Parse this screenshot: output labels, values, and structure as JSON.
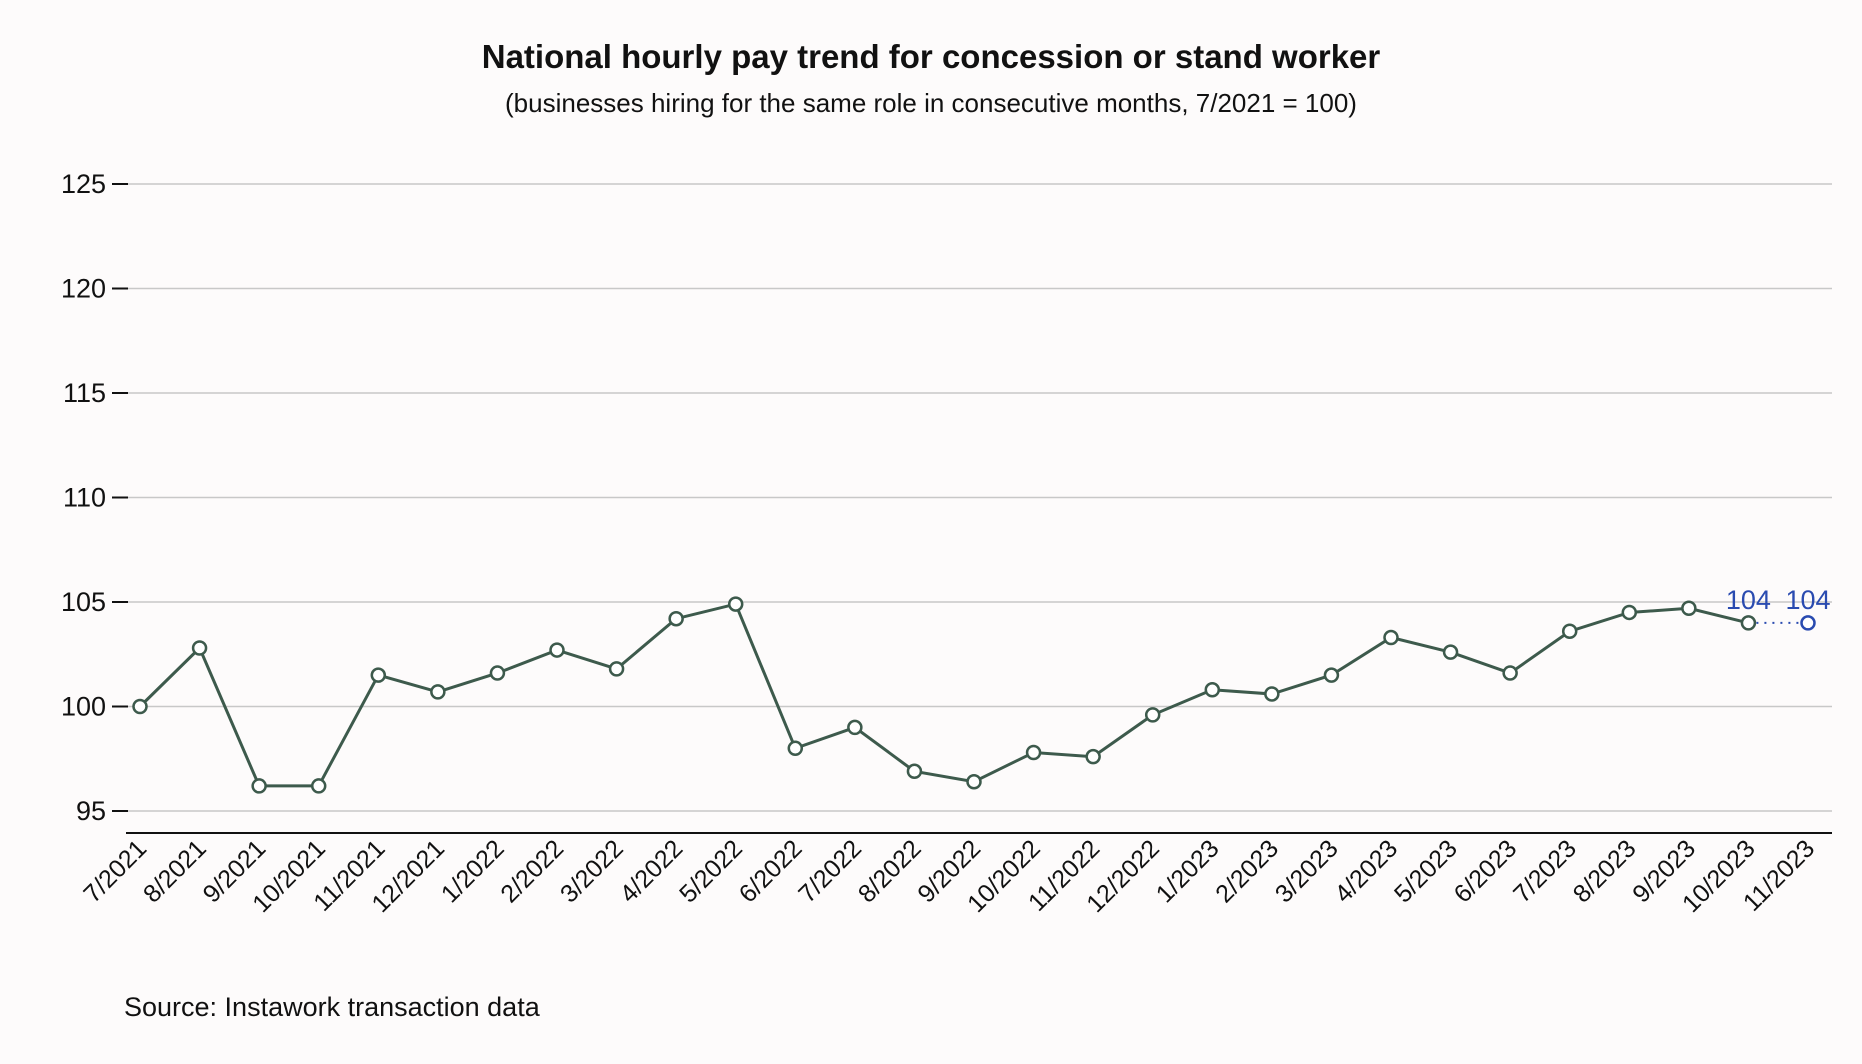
{
  "title": "National hourly pay trend for concession or stand worker",
  "subtitle": "(businesses hiring for the same role in consecutive months, 7/2021 = 100)",
  "source": "Source: Instawork transaction data",
  "chart_data": {
    "type": "line",
    "title": "National hourly pay trend for concession or stand worker",
    "subtitle": "(businesses hiring for the same role in consecutive months, 7/2021 = 100)",
    "xlabel": "",
    "ylabel": "",
    "ylim": [
      93,
      126
    ],
    "yticks": [
      95,
      100,
      105,
      110,
      115,
      120,
      125
    ],
    "grid": true,
    "categories": [
      "7/2021",
      "8/2021",
      "9/2021",
      "10/2021",
      "11/2021",
      "12/2021",
      "1/2022",
      "2/2022",
      "3/2022",
      "4/2022",
      "5/2022",
      "6/2022",
      "7/2022",
      "8/2022",
      "9/2022",
      "10/2022",
      "11/2022",
      "12/2022",
      "1/2023",
      "2/2023",
      "3/2023",
      "4/2023",
      "5/2023",
      "6/2023",
      "7/2023",
      "8/2023",
      "9/2023",
      "10/2023",
      "11/2023"
    ],
    "series": [
      {
        "color": "#3d5a4c",
        "values": [
          100,
          102.8,
          96.2,
          96.2,
          101.5,
          100.7,
          101.6,
          102.7,
          101.8,
          104.2,
          104.9,
          98,
          99,
          96.9,
          96.4,
          97.8,
          97.6,
          99.6,
          100.8,
          100.6,
          101.5,
          103.3,
          102.6,
          101.6,
          103.6,
          104.5,
          104.7,
          104,
          null
        ]
      },
      {
        "color": "#2a4bb0",
        "style": "dotted",
        "values": [
          null,
          null,
          null,
          null,
          null,
          null,
          null,
          null,
          null,
          null,
          null,
          null,
          null,
          null,
          null,
          null,
          null,
          null,
          null,
          null,
          null,
          null,
          null,
          null,
          null,
          null,
          null,
          104,
          104
        ]
      }
    ],
    "annotations": [
      {
        "category": "10/2023",
        "value": 104,
        "text": "104"
      },
      {
        "category": "11/2023",
        "value": 104,
        "text": "104"
      }
    ]
  }
}
